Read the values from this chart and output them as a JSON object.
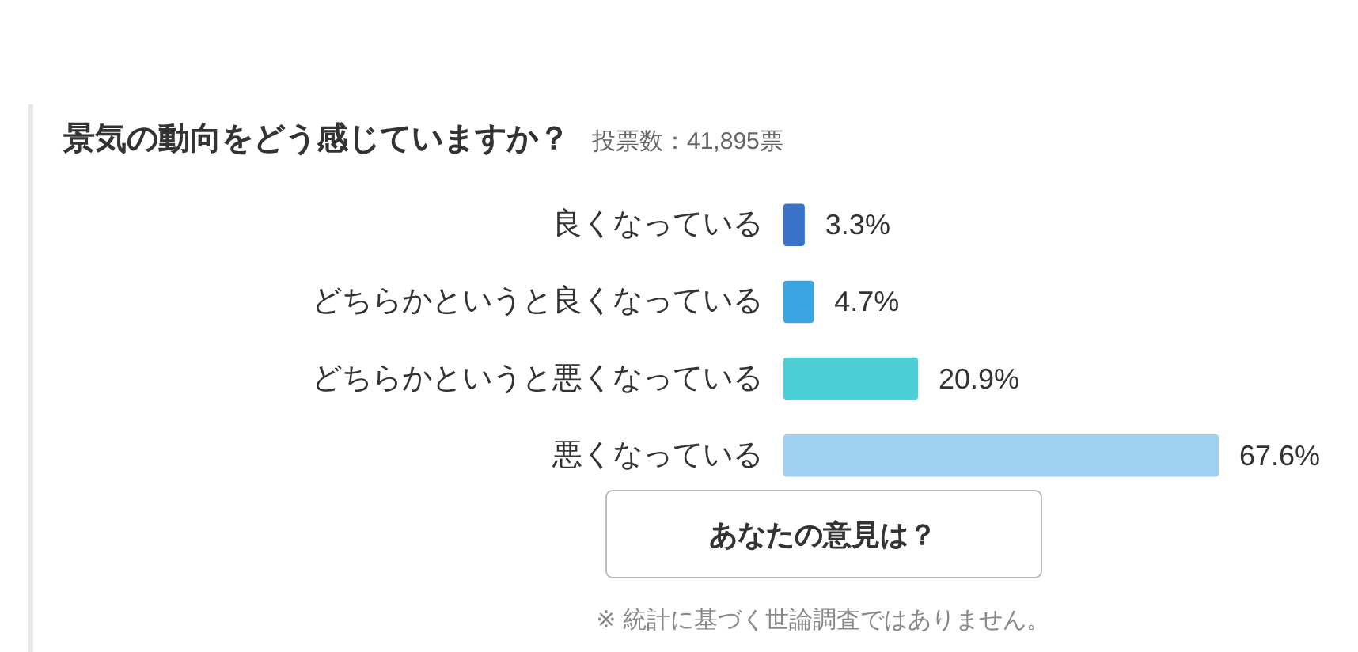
{
  "chart_data": {
    "type": "bar",
    "orientation": "horizontal",
    "title": "景気の動向をどう感じていますか？",
    "subtitle": "投票数：41,895票",
    "categories": [
      "良くなっている",
      "どちらかというと良くなっている",
      "どちらかというと悪くなっている",
      "悪くなっている"
    ],
    "values": [
      3.3,
      4.7,
      20.9,
      67.6
    ],
    "colors": [
      "#3a72c8",
      "#3aa5e0",
      "#4ecfd8",
      "#9fd2f2"
    ],
    "value_labels": [
      "3.3%",
      "4.7%",
      "20.9%",
      "67.6%"
    ],
    "annotations": [
      "あなたの意見は？",
      "※ 統計に基づく世論調査ではありません。"
    ]
  }
}
